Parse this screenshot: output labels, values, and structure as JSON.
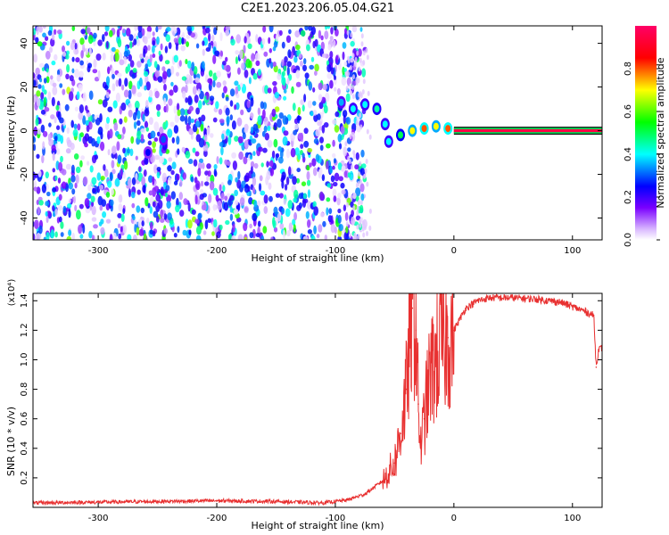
{
  "title": "C2E1.2023.206.05.04.G21",
  "chart_data": [
    {
      "type": "heatmap",
      "xlabel": "Height of straight line (km)",
      "ylabel": "Frequency (Hz)",
      "xlim": [
        -355,
        125
      ],
      "ylim": [
        -50,
        48
      ],
      "xticks": [
        -300,
        -200,
        -100,
        0,
        100
      ],
      "yticks": [
        -40,
        -20,
        0,
        20,
        40
      ],
      "colorbar": {
        "label": "Normalized spectral amplitude",
        "range": [
          0,
          1
        ],
        "ticks": [
          0.0,
          0.2,
          0.4,
          0.6,
          0.8
        ],
        "colors": [
          "#ffffff",
          "#d9b8ff",
          "#7a00ff",
          "#0000ff",
          "#00ffff",
          "#00ff00",
          "#ffff00",
          "#ff0000",
          "#ff0066"
        ]
      },
      "noise_region": {
        "x": [
          -355,
          -75
        ],
        "y": [
          -50,
          48
        ],
        "amplitude": 0.15
      },
      "ridge": [
        {
          "x": -258,
          "y": -10,
          "amp": 0.25
        },
        {
          "x": -245,
          "y": -4,
          "amp": 0.3
        },
        {
          "x": -95,
          "y": 13,
          "amp": 0.35
        },
        {
          "x": -85,
          "y": 10,
          "amp": 0.4
        },
        {
          "x": -75,
          "y": 12,
          "amp": 0.4
        },
        {
          "x": -65,
          "y": 10,
          "amp": 0.45
        },
        {
          "x": -58,
          "y": 3,
          "amp": 0.4
        },
        {
          "x": -55,
          "y": -5,
          "amp": 0.4
        },
        {
          "x": -45,
          "y": -2,
          "amp": 0.5
        },
        {
          "x": -35,
          "y": 0,
          "amp": 0.7
        },
        {
          "x": -25,
          "y": 1,
          "amp": 0.8
        },
        {
          "x": -15,
          "y": 2,
          "amp": 0.7
        },
        {
          "x": -5,
          "y": 1,
          "amp": 0.8
        }
      ],
      "stable_line": {
        "x": [
          0,
          125
        ],
        "y": 0,
        "amp": 0.95
      }
    },
    {
      "type": "line",
      "xlabel": "Height of straight line (km)",
      "ylabel": "SNR (10 * v/v)",
      "y_multiplier": "(x10⁴)",
      "xlim": [
        -355,
        125
      ],
      "ylim": [
        0,
        14500
      ],
      "xticks": [
        -300,
        -200,
        -100,
        0,
        100
      ],
      "yticks": [
        0.2,
        0.4,
        0.6,
        0.8,
        1.0,
        1.2,
        1.4
      ],
      "ytick_labels": [
        "0.2",
        "0.4",
        "0.6",
        "0.8",
        "1.0",
        "1.2",
        "1.4"
      ],
      "series": [
        {
          "color": "#e83030",
          "x": [
            -355,
            -300,
            -250,
            -200,
            -150,
            -110,
            -90,
            -75,
            -60,
            -50,
            -45,
            -40,
            -35,
            -32,
            -30,
            -28,
            -25,
            -20,
            -15,
            -10,
            -5,
            0,
            10,
            20,
            30,
            50,
            70,
            90,
            100,
            110,
            118,
            120,
            122,
            125
          ],
          "y": [
            300,
            350,
            400,
            450,
            400,
            300,
            500,
            900,
            1800,
            3000,
            5000,
            8000,
            13500,
            12000,
            7000,
            4000,
            6000,
            9000,
            10000,
            11000,
            11500,
            12000,
            13500,
            14000,
            14200,
            14200,
            14100,
            13900,
            13600,
            13300,
            13000,
            9500,
            10700,
            10800
          ]
        }
      ]
    }
  ]
}
